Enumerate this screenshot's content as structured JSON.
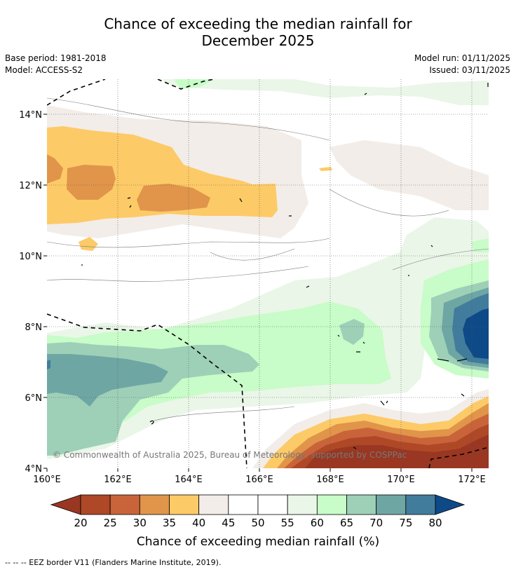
{
  "title_line1": "Chance of exceeding the median rainfall for",
  "title_line2": "December 2025",
  "base_period": "Base period: 1981-2018",
  "model": "Model: ACCESS-S2",
  "model_run": "Model run: 01/11/2025",
  "issued": "Issued: 03/11/2025",
  "copyright": "© Commonwealth of Australia 2025, Bureau of Meteorology, supported by COSPPac",
  "footer": "--  --  -- EEZ border V11 (Flanders Marine Institute, 2019).",
  "colorbar": {
    "title": "Chance of exceeding median rainfall (%)",
    "labels": [
      "20",
      "25",
      "30",
      "35",
      "40",
      "45",
      "50",
      "55",
      "60",
      "65",
      "70",
      "75",
      "80"
    ],
    "colors": [
      "#ae4826",
      "#c9643a",
      "#e0954a",
      "#fdca68",
      "#f2ede8",
      "#ffffff",
      "#ffffff",
      "#eaf6e8",
      "#c8fcc8",
      "#9ed0b8",
      "#6ea6a4",
      "#427c9c"
    ],
    "low_color": "#993722",
    "high_color": "#0e4a88"
  },
  "chart_data": {
    "type": "map",
    "title": "Chance of exceeding the median rainfall for December 2025",
    "lon_ticks": [
      "160°E",
      "162°E",
      "164°E",
      "166°E",
      "168°E",
      "170°E",
      "172°E"
    ],
    "lat_ticks": [
      "14°N",
      "12°N",
      "10°N",
      "8°N",
      "6°N",
      "4°N"
    ],
    "lon_range": [
      160,
      172.5
    ],
    "lat_range": [
      4,
      15.0
    ],
    "grid": true
  }
}
